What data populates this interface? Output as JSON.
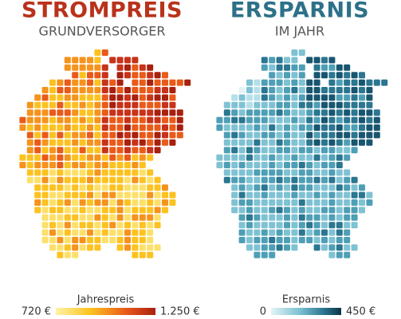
{
  "maps": [
    {
      "title": "STROMPREIS",
      "subtitle": "GRUNDVERSORGER",
      "color": "#b9321b",
      "legend": {
        "title": "Jahrespreis",
        "min": {
          "value": 720,
          "label": "720 €"
        },
        "max": {
          "value": 1250,
          "label": "1.250 €"
        }
      }
    },
    {
      "title": "ERSPARNIS",
      "subtitle": "IM JAHR",
      "color": "#2d7189",
      "legend": {
        "title": "Ersparnis",
        "min": 0,
        "max": {
          "value": 450,
          "label": "450 €"
        }
      }
    }
  ]
}
